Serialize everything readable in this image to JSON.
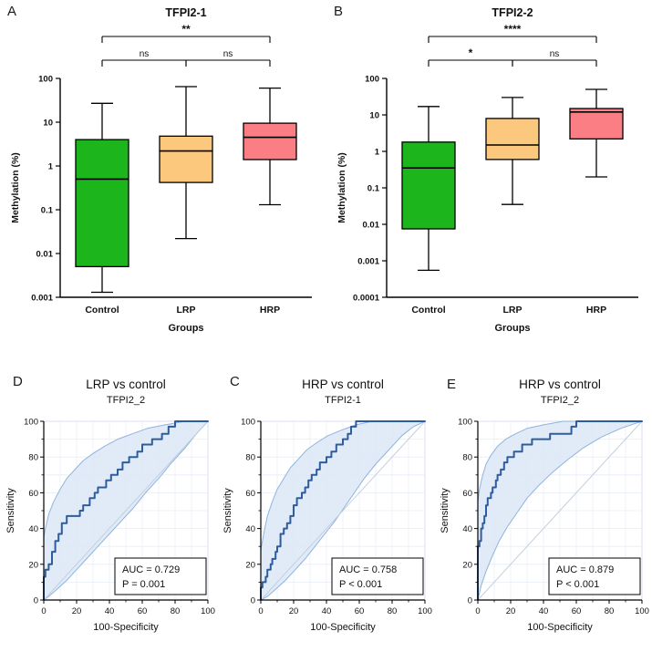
{
  "colors": {
    "background": "#ffffff",
    "axis": "#000000",
    "text": "#111111",
    "roc_line": "#2e5c9e",
    "roc_band_fill": "#dce8f6",
    "roc_band_edge": "#8fb3dd",
    "roc_diagonal": "#c3cfdf",
    "roc_grid": "#e7eef7",
    "roc_frame": "#d9e2ee",
    "box_control": "#1cb51c",
    "box_lrp": "#fcc87d",
    "box_hrp": "#fa7e84"
  },
  "chart_data": [
    {
      "id": "A",
      "panel_label": "A",
      "type": "box",
      "title": "TFPI2-1",
      "xlabel": "Groups",
      "ylabel": "Methylation (%)",
      "yscale": "log",
      "ylim": [
        0.001,
        100
      ],
      "yticks": [
        0.001,
        0.01,
        0.1,
        1,
        10,
        100
      ],
      "ytick_labels": [
        "0.001",
        "0.01",
        "0.1",
        "1",
        "10",
        "100"
      ],
      "categories": [
        "Control",
        "LRP",
        "HRP"
      ],
      "boxes": [
        {
          "group": "Control",
          "color": "#1cb51c",
          "whisker_low": 0.0013,
          "q1": 0.005,
          "median": 0.5,
          "q3": 4.0,
          "whisker_high": 27
        },
        {
          "group": "LRP",
          "color": "#fcc87d",
          "whisker_low": 0.022,
          "q1": 0.42,
          "median": 2.2,
          "q3": 4.8,
          "whisker_high": 65
        },
        {
          "group": "HRP",
          "color": "#fa7e84",
          "whisker_low": 0.13,
          "q1": 1.4,
          "median": 4.5,
          "q3": 9.5,
          "whisker_high": 60
        }
      ],
      "comparisons": [
        {
          "from": "Control",
          "to": "HRP",
          "label": "**",
          "level": 2
        },
        {
          "from": "Control",
          "to": "LRP",
          "label": "ns",
          "level": 1
        },
        {
          "from": "LRP",
          "to": "HRP",
          "label": "ns",
          "level": 1
        }
      ]
    },
    {
      "id": "B",
      "panel_label": "B",
      "type": "box",
      "title": "TFPI2-2",
      "xlabel": "Groups",
      "ylabel": "Methylation (%)",
      "yscale": "log",
      "ylim": [
        0.0001,
        100
      ],
      "yticks": [
        0.0001,
        0.001,
        0.01,
        0.1,
        1,
        10,
        100
      ],
      "ytick_labels": [
        "0.0001",
        "0.001",
        "0.01",
        "0.1",
        "1",
        "10",
        "100"
      ],
      "categories": [
        "Control",
        "LRP",
        "HRP"
      ],
      "boxes": [
        {
          "group": "Control",
          "color": "#1cb51c",
          "whisker_low": 0.00055,
          "q1": 0.0075,
          "median": 0.35,
          "q3": 1.8,
          "whisker_high": 17
        },
        {
          "group": "LRP",
          "color": "#fcc87d",
          "whisker_low": 0.035,
          "q1": 0.6,
          "median": 1.5,
          "q3": 8.0,
          "whisker_high": 30
        },
        {
          "group": "HRP",
          "color": "#fa7e84",
          "whisker_low": 0.2,
          "q1": 2.2,
          "median": 12.0,
          "q3": 15.0,
          "whisker_high": 50
        }
      ],
      "comparisons": [
        {
          "from": "Control",
          "to": "HRP",
          "label": "****",
          "level": 2
        },
        {
          "from": "Control",
          "to": "LRP",
          "label": "*",
          "level": 1
        },
        {
          "from": "LRP",
          "to": "HRP",
          "label": "ns",
          "level": 1
        }
      ]
    },
    {
      "id": "D",
      "panel_label": "D",
      "type": "roc",
      "title": "LRP vs control",
      "subtitle": "TFPI2_2",
      "xlabel": "100-Specificity",
      "ylabel": "Sensitivity",
      "xlim": [
        0,
        100
      ],
      "ylim": [
        0,
        100
      ],
      "ticks": [
        0,
        20,
        40,
        60,
        80,
        100
      ],
      "annotation": {
        "line1": "AUC = 0.729",
        "line2": "P = 0.001"
      },
      "curve": [
        [
          0,
          0
        ],
        [
          0,
          13
        ],
        [
          1,
          13
        ],
        [
          1,
          17
        ],
        [
          3,
          17
        ],
        [
          3,
          20
        ],
        [
          5,
          20
        ],
        [
          5,
          27
        ],
        [
          7,
          27
        ],
        [
          7,
          33
        ],
        [
          9,
          33
        ],
        [
          9,
          37
        ],
        [
          11,
          37
        ],
        [
          11,
          43
        ],
        [
          14,
          43
        ],
        [
          14,
          47
        ],
        [
          22,
          47
        ],
        [
          22,
          50
        ],
        [
          24,
          50
        ],
        [
          24,
          53
        ],
        [
          28,
          53
        ],
        [
          28,
          57
        ],
        [
          31,
          57
        ],
        [
          31,
          60
        ],
        [
          33,
          60
        ],
        [
          33,
          63
        ],
        [
          38,
          63
        ],
        [
          38,
          67
        ],
        [
          41,
          67
        ],
        [
          41,
          70
        ],
        [
          45,
          70
        ],
        [
          45,
          73
        ],
        [
          48,
          73
        ],
        [
          48,
          77
        ],
        [
          52,
          77
        ],
        [
          52,
          80
        ],
        [
          57,
          80
        ],
        [
          57,
          83
        ],
        [
          60,
          83
        ],
        [
          60,
          87
        ],
        [
          66,
          87
        ],
        [
          66,
          90
        ],
        [
          72,
          90
        ],
        [
          72,
          93
        ],
        [
          76,
          93
        ],
        [
          76,
          97
        ],
        [
          80,
          97
        ],
        [
          80,
          100
        ],
        [
          100,
          100
        ]
      ],
      "ci_upper": [
        [
          0,
          0
        ],
        [
          0,
          35
        ],
        [
          1,
          40
        ],
        [
          3,
          48
        ],
        [
          6,
          55
        ],
        [
          10,
          62
        ],
        [
          14,
          68
        ],
        [
          19,
          73
        ],
        [
          24,
          78
        ],
        [
          30,
          82
        ],
        [
          37,
          86
        ],
        [
          45,
          90
        ],
        [
          54,
          93
        ],
        [
          63,
          96
        ],
        [
          74,
          98
        ],
        [
          86,
          100
        ],
        [
          100,
          100
        ]
      ],
      "ci_lower": [
        [
          0,
          0
        ],
        [
          3,
          2
        ],
        [
          8,
          6
        ],
        [
          14,
          11
        ],
        [
          20,
          17
        ],
        [
          27,
          24
        ],
        [
          34,
          31
        ],
        [
          41,
          38
        ],
        [
          48,
          45
        ],
        [
          55,
          52
        ],
        [
          62,
          60
        ],
        [
          70,
          68
        ],
        [
          78,
          77
        ],
        [
          86,
          85
        ],
        [
          93,
          93
        ],
        [
          100,
          100
        ]
      ]
    },
    {
      "id": "C",
      "panel_label": "C",
      "type": "roc",
      "title": "HRP vs control",
      "subtitle": "TFPI2-1",
      "xlabel": "100-Specificity",
      "ylabel": "Sensitivity",
      "xlim": [
        0,
        100
      ],
      "ylim": [
        0,
        100
      ],
      "ticks": [
        0,
        20,
        40,
        60,
        80,
        100
      ],
      "annotation": {
        "line1": "AUC = 0.758",
        "line2": "P < 0.001"
      },
      "curve": [
        [
          0,
          0
        ],
        [
          0,
          7
        ],
        [
          1,
          7
        ],
        [
          1,
          10
        ],
        [
          3,
          10
        ],
        [
          3,
          13
        ],
        [
          4,
          13
        ],
        [
          4,
          17
        ],
        [
          6,
          17
        ],
        [
          6,
          20
        ],
        [
          7,
          20
        ],
        [
          7,
          23
        ],
        [
          9,
          23
        ],
        [
          9,
          27
        ],
        [
          10,
          27
        ],
        [
          10,
          30
        ],
        [
          12,
          30
        ],
        [
          12,
          37
        ],
        [
          14,
          37
        ],
        [
          14,
          40
        ],
        [
          16,
          40
        ],
        [
          16,
          43
        ],
        [
          18,
          43
        ],
        [
          18,
          47
        ],
        [
          20,
          47
        ],
        [
          20,
          53
        ],
        [
          22,
          53
        ],
        [
          22,
          57
        ],
        [
          25,
          57
        ],
        [
          25,
          60
        ],
        [
          27,
          60
        ],
        [
          27,
          63
        ],
        [
          29,
          63
        ],
        [
          29,
          67
        ],
        [
          31,
          67
        ],
        [
          31,
          70
        ],
        [
          34,
          70
        ],
        [
          34,
          73
        ],
        [
          36,
          73
        ],
        [
          36,
          77
        ],
        [
          40,
          77
        ],
        [
          40,
          80
        ],
        [
          43,
          80
        ],
        [
          43,
          83
        ],
        [
          46,
          83
        ],
        [
          46,
          87
        ],
        [
          50,
          87
        ],
        [
          50,
          90
        ],
        [
          53,
          90
        ],
        [
          53,
          93
        ],
        [
          55,
          93
        ],
        [
          55,
          97
        ],
        [
          58,
          97
        ],
        [
          58,
          100
        ],
        [
          100,
          100
        ]
      ],
      "ci_upper": [
        [
          0,
          0
        ],
        [
          0,
          28
        ],
        [
          2,
          38
        ],
        [
          4,
          47
        ],
        [
          7,
          55
        ],
        [
          10,
          62
        ],
        [
          14,
          68
        ],
        [
          18,
          74
        ],
        [
          23,
          79
        ],
        [
          28,
          84
        ],
        [
          34,
          88
        ],
        [
          41,
          92
        ],
        [
          49,
          95
        ],
        [
          58,
          98
        ],
        [
          68,
          100
        ],
        [
          100,
          100
        ]
      ],
      "ci_lower": [
        [
          0,
          0
        ],
        [
          4,
          2
        ],
        [
          9,
          6
        ],
        [
          15,
          11
        ],
        [
          21,
          17
        ],
        [
          27,
          23
        ],
        [
          33,
          30
        ],
        [
          39,
          37
        ],
        [
          45,
          44
        ],
        [
          51,
          52
        ],
        [
          57,
          60
        ],
        [
          63,
          68
        ],
        [
          70,
          76
        ],
        [
          78,
          84
        ],
        [
          86,
          92
        ],
        [
          93,
          97
        ],
        [
          100,
          100
        ]
      ]
    },
    {
      "id": "E",
      "panel_label": "E",
      "type": "roc",
      "title": "HRP vs control",
      "subtitle": "TFPI2_2",
      "xlabel": "100-Specificity",
      "ylabel": "Sensitivity",
      "xlim": [
        0,
        100
      ],
      "ylim": [
        0,
        100
      ],
      "ticks": [
        0,
        20,
        40,
        60,
        80,
        100
      ],
      "annotation": {
        "line1": "AUC = 0.879",
        "line2": "P < 0.001"
      },
      "curve": [
        [
          0,
          0
        ],
        [
          0,
          30
        ],
        [
          1,
          30
        ],
        [
          1,
          33
        ],
        [
          2,
          33
        ],
        [
          2,
          40
        ],
        [
          3,
          40
        ],
        [
          3,
          43
        ],
        [
          4,
          43
        ],
        [
          4,
          47
        ],
        [
          5,
          47
        ],
        [
          5,
          53
        ],
        [
          6,
          53
        ],
        [
          6,
          57
        ],
        [
          8,
          57
        ],
        [
          8,
          60
        ],
        [
          9,
          60
        ],
        [
          9,
          63
        ],
        [
          11,
          63
        ],
        [
          11,
          67
        ],
        [
          12,
          67
        ],
        [
          12,
          70
        ],
        [
          14,
          70
        ],
        [
          14,
          73
        ],
        [
          16,
          73
        ],
        [
          16,
          77
        ],
        [
          18,
          77
        ],
        [
          18,
          80
        ],
        [
          22,
          80
        ],
        [
          22,
          83
        ],
        [
          27,
          83
        ],
        [
          27,
          87
        ],
        [
          33,
          87
        ],
        [
          33,
          90
        ],
        [
          44,
          90
        ],
        [
          44,
          93
        ],
        [
          57,
          93
        ],
        [
          57,
          97
        ],
        [
          60,
          97
        ],
        [
          60,
          100
        ],
        [
          100,
          100
        ]
      ],
      "ci_upper": [
        [
          0,
          0
        ],
        [
          0,
          55
        ],
        [
          1,
          62
        ],
        [
          3,
          70
        ],
        [
          5,
          76
        ],
        [
          8,
          81
        ],
        [
          12,
          86
        ],
        [
          17,
          90
        ],
        [
          23,
          93
        ],
        [
          30,
          96
        ],
        [
          40,
          98
        ],
        [
          52,
          100
        ],
        [
          100,
          100
        ]
      ],
      "ci_lower": [
        [
          0,
          0
        ],
        [
          2,
          8
        ],
        [
          5,
          16
        ],
        [
          9,
          25
        ],
        [
          13,
          33
        ],
        [
          18,
          41
        ],
        [
          24,
          49
        ],
        [
          30,
          57
        ],
        [
          37,
          64
        ],
        [
          45,
          71
        ],
        [
          54,
          78
        ],
        [
          64,
          85
        ],
        [
          75,
          91
        ],
        [
          87,
          96
        ],
        [
          100,
          100
        ]
      ]
    }
  ]
}
